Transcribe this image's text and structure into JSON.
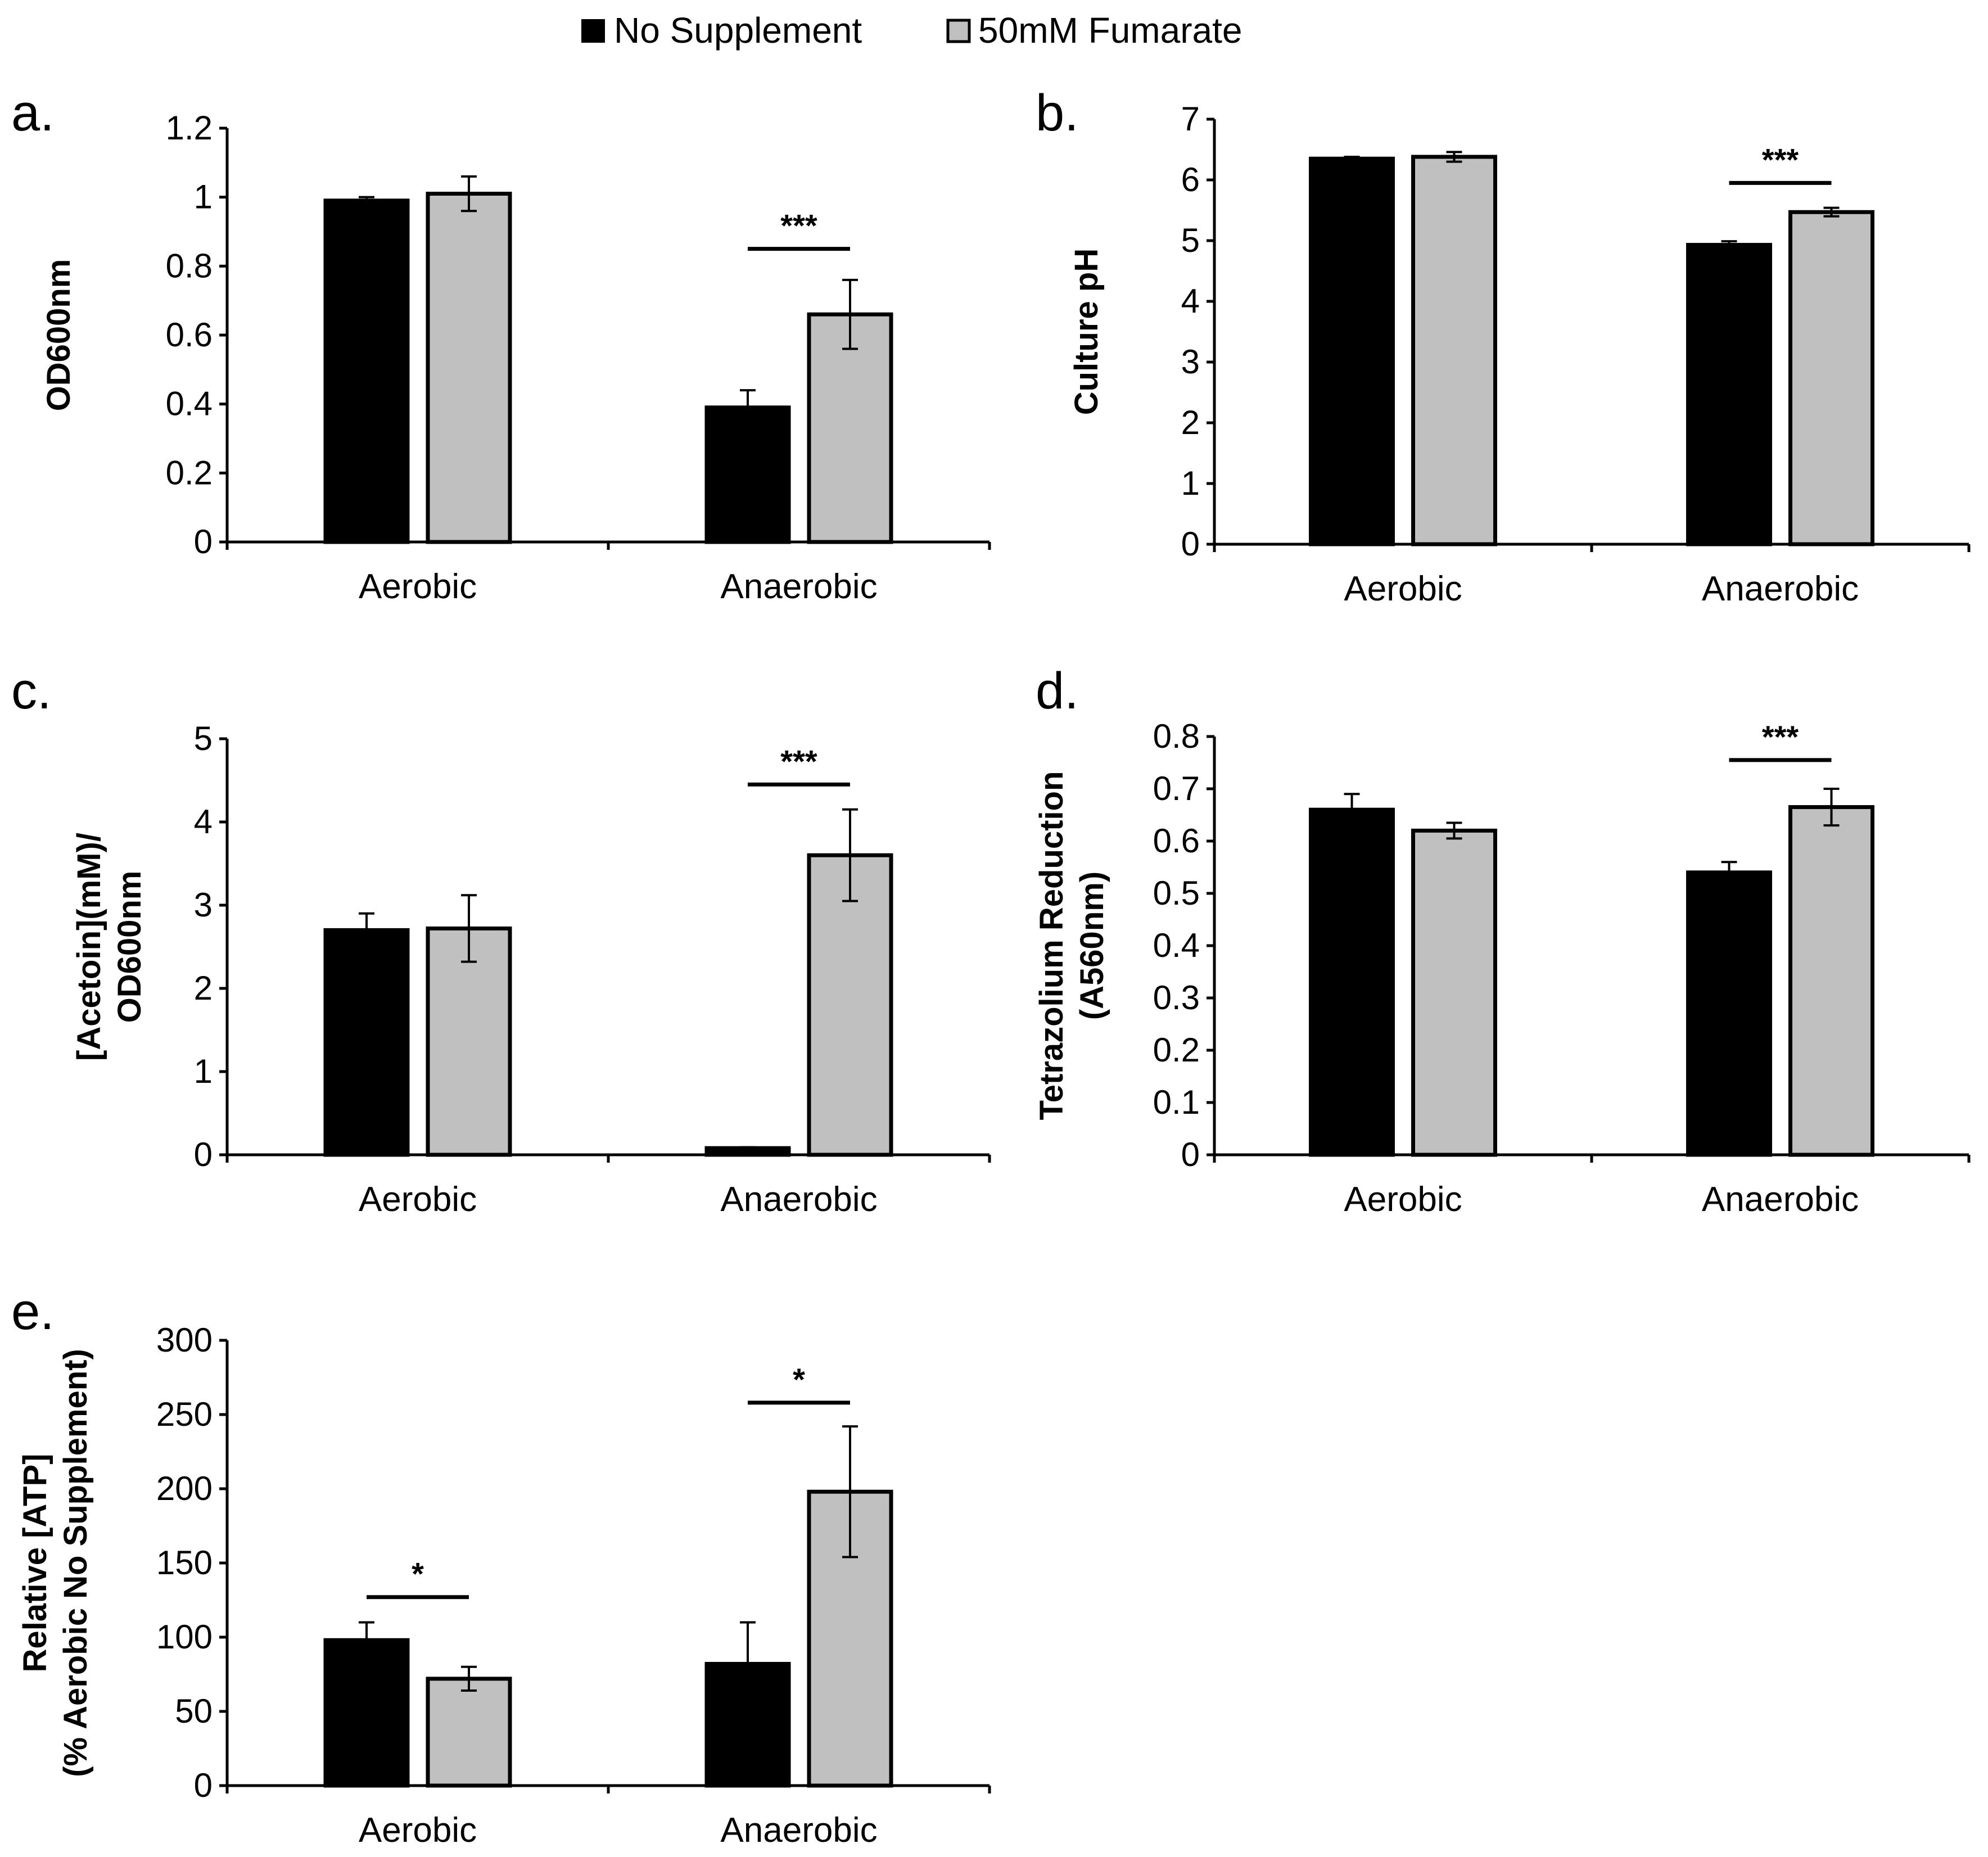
{
  "legend": {
    "items": [
      {
        "label": "No Supplement",
        "color": "#000000"
      },
      {
        "label": "50mM Fumarate",
        "color": "#c0c0c0"
      }
    ]
  },
  "chart_data": [
    {
      "panel": "a.",
      "type": "bar",
      "categories": [
        "Aerobic",
        "Anaerobic"
      ],
      "series": [
        {
          "name": "No Supplement",
          "values": [
            0.99,
            0.39
          ],
          "errors": [
            0.01,
            0.05
          ]
        },
        {
          "name": "50mM Fumarate",
          "values": [
            1.01,
            0.66
          ],
          "errors": [
            0.05,
            0.1
          ]
        }
      ],
      "ylabel": "OD600nm",
      "ylim": [
        0,
        1.2
      ],
      "yticks": [
        "0",
        "0.2",
        "0.4",
        "0.6",
        "0.8",
        "1",
        "1.2"
      ],
      "significance": [
        {
          "category": "Anaerobic",
          "label": "***",
          "y": 0.85
        }
      ]
    },
    {
      "panel": "b.",
      "type": "bar",
      "categories": [
        "Aerobic",
        "Anaerobic"
      ],
      "series": [
        {
          "name": "No Supplement",
          "values": [
            6.35,
            4.93
          ],
          "errors": [
            0.03,
            0.06
          ]
        },
        {
          "name": "50mM Fumarate",
          "values": [
            6.38,
            5.47
          ],
          "errors": [
            0.08,
            0.07
          ]
        }
      ],
      "ylabel": "Culture pH",
      "ylim": [
        0,
        7
      ],
      "yticks": [
        "0",
        "1",
        "2",
        "3",
        "4",
        "5",
        "6",
        "7"
      ],
      "significance": [
        {
          "category": "Anaerobic",
          "label": "***",
          "y": 5.95
        }
      ]
    },
    {
      "panel": "c.",
      "type": "bar",
      "categories": [
        "Aerobic",
        "Anaerobic"
      ],
      "series": [
        {
          "name": "No Supplement",
          "values": [
            2.7,
            0.08
          ],
          "errors": [
            0.2,
            0.01
          ]
        },
        {
          "name": "50mM Fumarate",
          "values": [
            2.72,
            3.6
          ],
          "errors": [
            0.4,
            0.55
          ]
        }
      ],
      "ylabel": [
        "[Acetoin](mM)/",
        "OD600nm"
      ],
      "ylim": [
        0,
        5
      ],
      "yticks": [
        "0",
        "1",
        "2",
        "3",
        "4",
        "5"
      ],
      "significance": [
        {
          "category": "Anaerobic",
          "label": "***",
          "y": 4.45
        }
      ]
    },
    {
      "panel": "d.",
      "type": "bar",
      "categories": [
        "Aerobic",
        "Anaerobic"
      ],
      "series": [
        {
          "name": "No Supplement",
          "values": [
            0.66,
            0.54
          ],
          "errors": [
            0.03,
            0.02
          ]
        },
        {
          "name": "50mM Fumarate",
          "values": [
            0.62,
            0.665
          ],
          "errors": [
            0.015,
            0.035
          ]
        }
      ],
      "ylabel": [
        "Tetrazolium Reduction",
        "(A560nm)"
      ],
      "ylim": [
        0,
        0.8
      ],
      "yticks": [
        "0",
        "0.1",
        "0.2",
        "0.3",
        "0.4",
        "0.5",
        "0.6",
        "0.7",
        "0.8"
      ],
      "significance": [
        {
          "category": "Anaerobic",
          "label": "***",
          "y": 0.755
        }
      ]
    },
    {
      "panel": "e.",
      "type": "bar",
      "categories": [
        "Aerobic",
        "Anaerobic"
      ],
      "series": [
        {
          "name": "No Supplement",
          "values": [
            98,
            82
          ],
          "errors": [
            12,
            28
          ]
        },
        {
          "name": "50mM Fumarate",
          "values": [
            72,
            198
          ],
          "errors": [
            8,
            44
          ]
        }
      ],
      "ylabel": [
        "Relative [ATP]",
        "(% Aerobic No Supplement)"
      ],
      "ylim": [
        0,
        300
      ],
      "yticks": [
        "0",
        "50",
        "100",
        "150",
        "200",
        "250",
        "300"
      ],
      "significance": [
        {
          "category": "Aerobic",
          "label": "*",
          "y": 127
        },
        {
          "category": "Anaerobic",
          "label": "*",
          "y": 258
        }
      ]
    }
  ]
}
